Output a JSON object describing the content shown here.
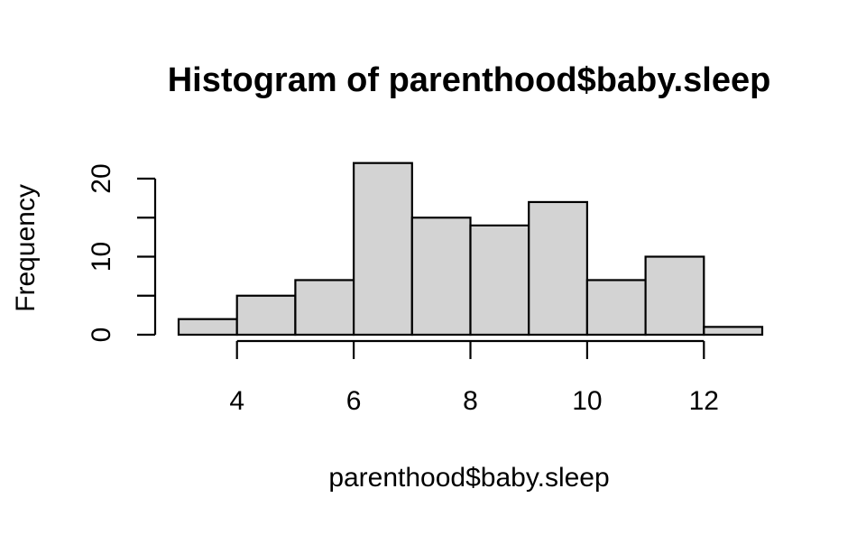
{
  "chart_data": {
    "type": "bar",
    "title": "Histogram of parenthood$baby.sleep",
    "xlabel": "parenthood$baby.sleep",
    "ylabel": "Frequency",
    "bins": [
      {
        "start": 3,
        "end": 4,
        "count": 2
      },
      {
        "start": 4,
        "end": 5,
        "count": 5
      },
      {
        "start": 5,
        "end": 6,
        "count": 7
      },
      {
        "start": 6,
        "end": 7,
        "count": 22
      },
      {
        "start": 7,
        "end": 8,
        "count": 15
      },
      {
        "start": 8,
        "end": 9,
        "count": 14
      },
      {
        "start": 9,
        "end": 10,
        "count": 17
      },
      {
        "start": 10,
        "end": 11,
        "count": 7
      },
      {
        "start": 11,
        "end": 12,
        "count": 10
      },
      {
        "start": 12,
        "end": 13,
        "count": 1
      }
    ],
    "x_ticks": [
      4,
      6,
      8,
      10,
      12
    ],
    "x_tick_labels": [
      "4",
      "6",
      "8",
      "10",
      "12"
    ],
    "y_ticks": [
      0,
      5,
      10,
      15,
      20
    ],
    "y_tick_labels": [
      "0",
      "",
      "10",
      "",
      "20"
    ],
    "xlim": [
      3,
      13
    ],
    "ylim": [
      0,
      22
    ],
    "grid": false,
    "bar_color": "#d3d3d3",
    "edge_color": "#000000"
  }
}
